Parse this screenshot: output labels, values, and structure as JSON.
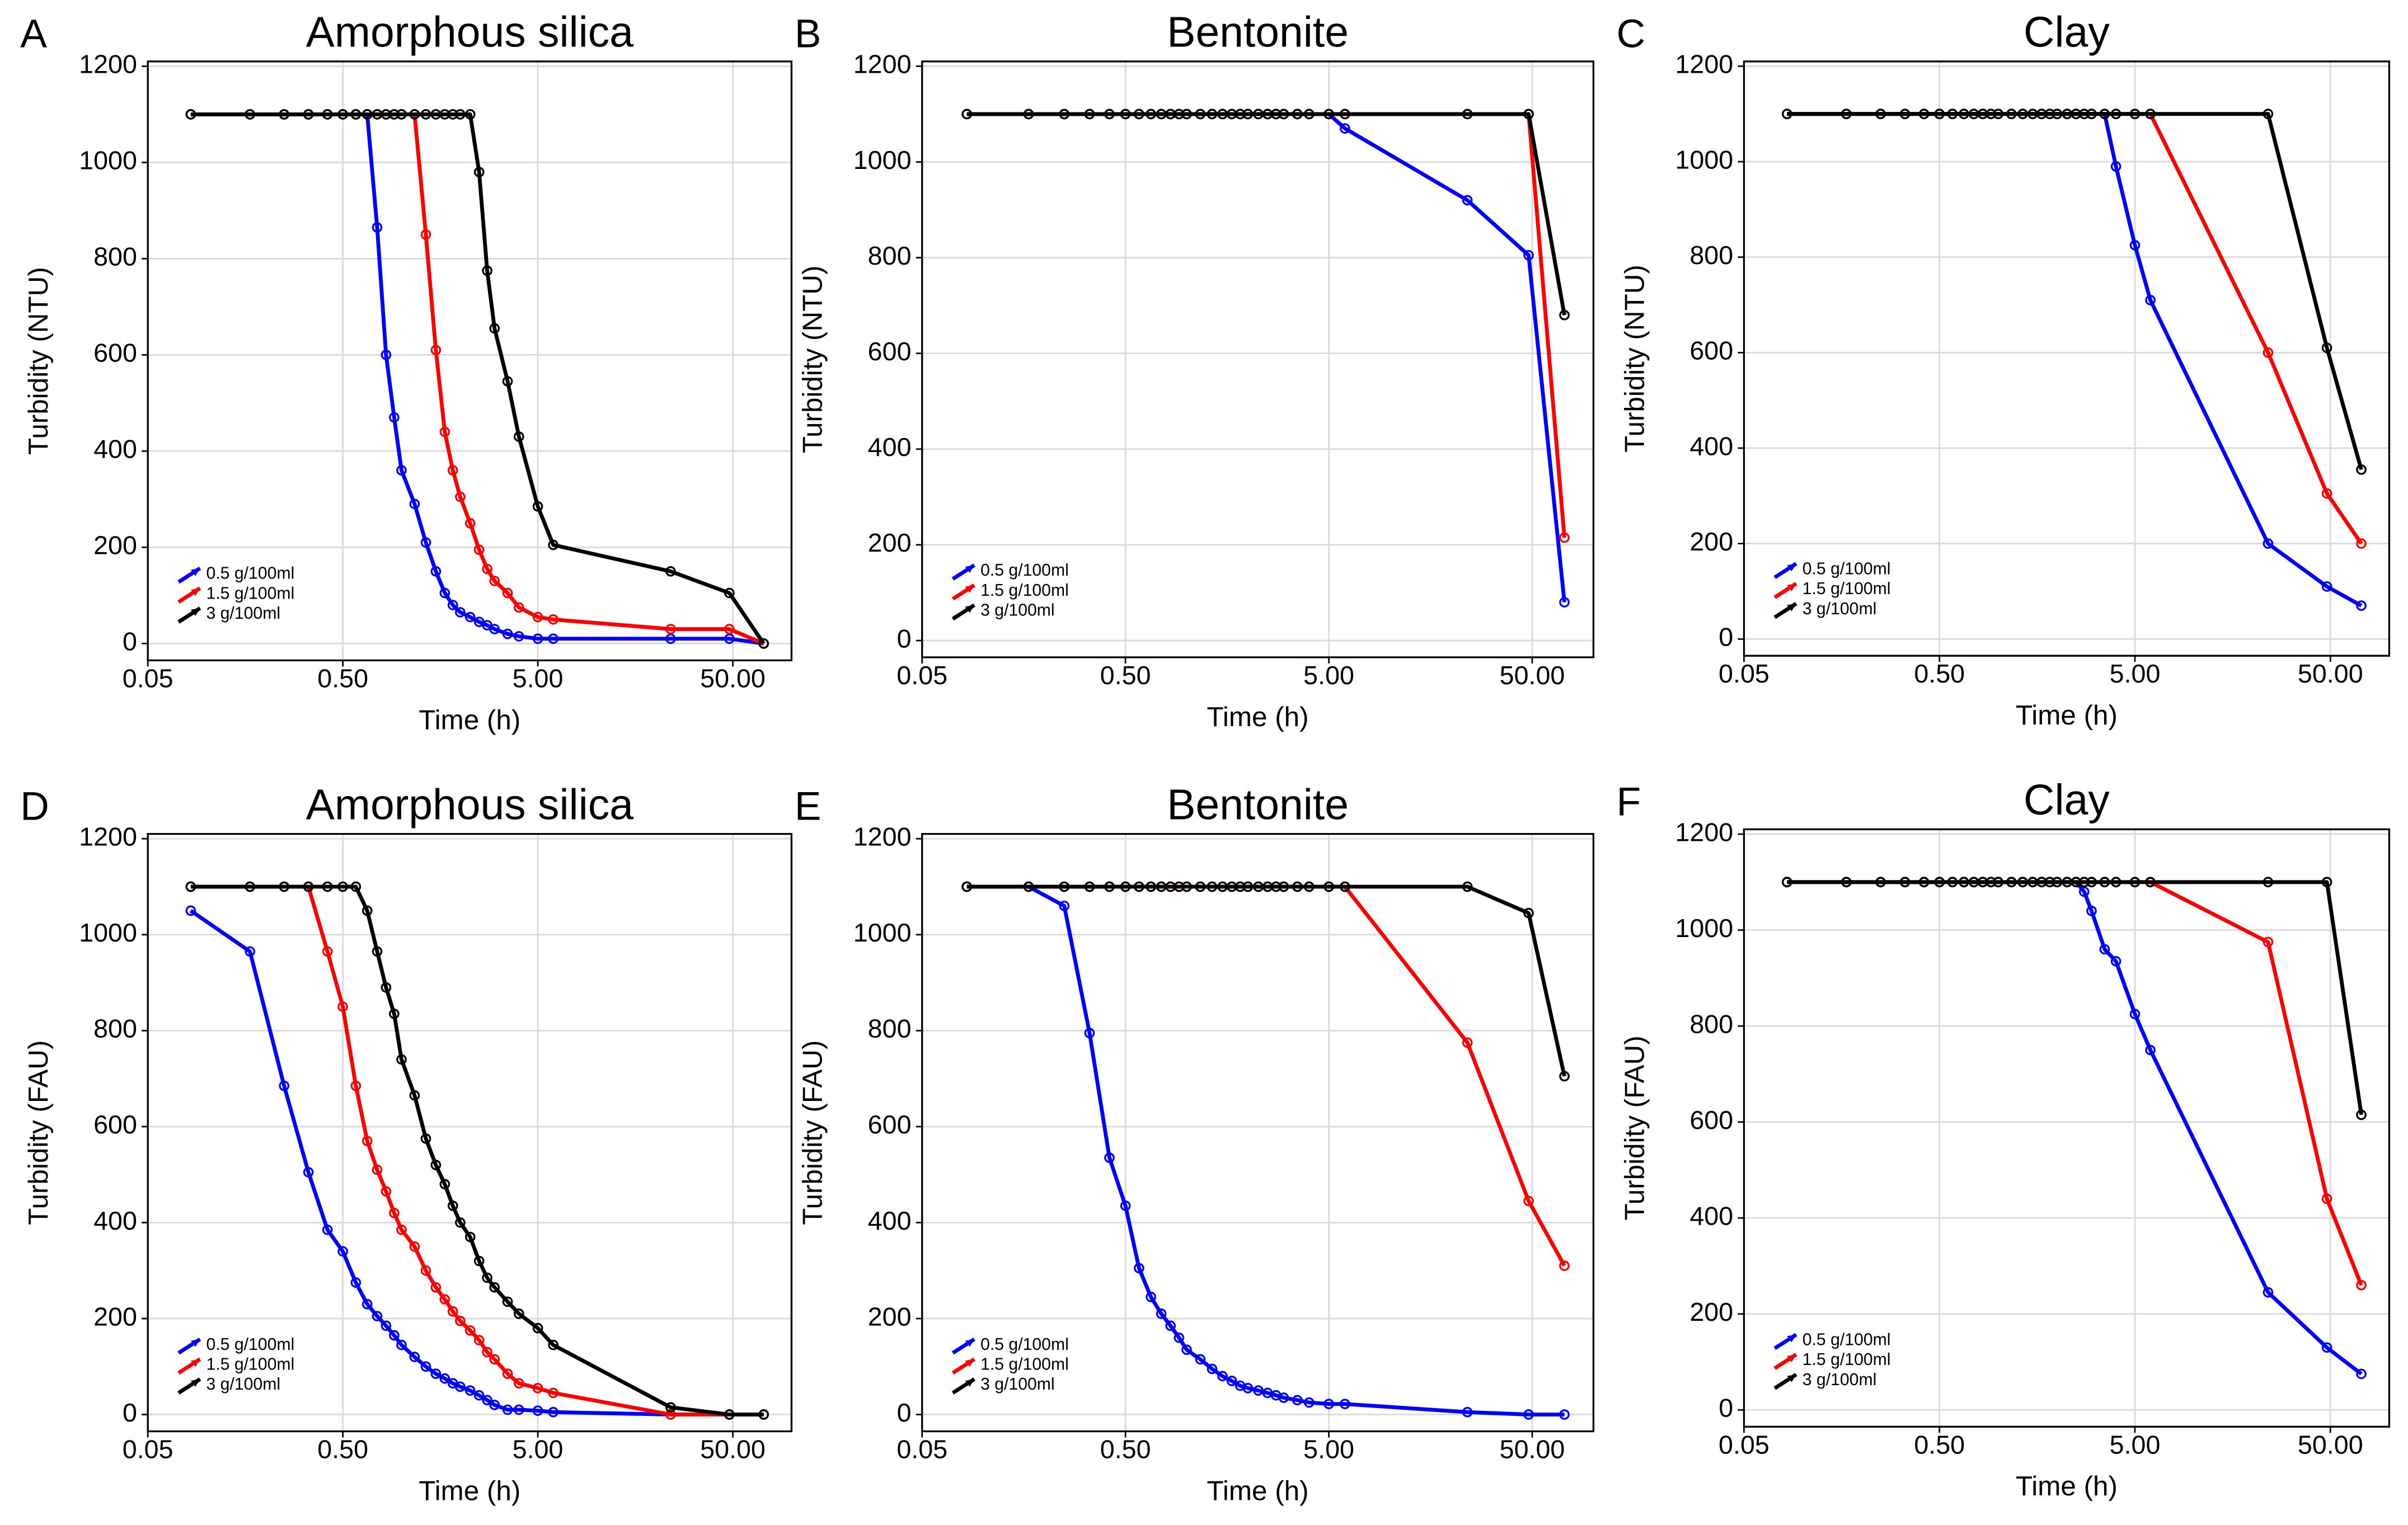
{
  "chart_data": [
    {
      "type": "line",
      "panel": "A",
      "title": "Amorphous silica",
      "x_label": "Time (h)",
      "y_label": "Turbidity (NTU)",
      "x": [
        0.083,
        0.167,
        0.25,
        0.333,
        0.417,
        0.5,
        0.583,
        0.667,
        0.75,
        0.833,
        0.917,
        1,
        1.167,
        1.333,
        1.5,
        1.667,
        1.833,
        2,
        2.25,
        2.5,
        2.75,
        3,
        3.5,
        4,
        5,
        6,
        24,
        48,
        72
      ],
      "series": [
        {
          "name": "0.5 g/100ml",
          "color": "#0000ff",
          "values": [
            1100,
            1100,
            1100,
            1100,
            1100,
            1100,
            1100,
            1100,
            865,
            600,
            470,
            360,
            290,
            210,
            150,
            105,
            80,
            65,
            55,
            45,
            38,
            30,
            20,
            15,
            10,
            10,
            10,
            10,
            0
          ]
        },
        {
          "name": "1.5 g/100ml",
          "color": "#ff0000",
          "values": [
            1100,
            1100,
            1100,
            1100,
            1100,
            1100,
            1100,
            1100,
            1100,
            1100,
            1100,
            1100,
            1100,
            850,
            610,
            440,
            360,
            305,
            250,
            195,
            155,
            130,
            105,
            75,
            55,
            50,
            30,
            30,
            0
          ]
        },
        {
          "name": "3 g/100ml",
          "color": "#000000",
          "values": [
            1100,
            1100,
            1100,
            1100,
            1100,
            1100,
            1100,
            1100,
            1100,
            1100,
            1100,
            1100,
            1100,
            1100,
            1100,
            1100,
            1100,
            1100,
            1100,
            980,
            775,
            655,
            545,
            430,
            285,
            205,
            150,
            105,
            0
          ]
        }
      ],
      "log_x": true,
      "xlim": [
        0.05,
        100
      ],
      "ylim": [
        -35,
        1210
      ],
      "xticks": [
        0.05,
        {
          "value": 0.5,
          "label": "0.50"
        },
        {
          "value": 5,
          "label": "5.00"
        },
        {
          "value": 50,
          "label": "50.00"
        }
      ],
      "yticks": [
        0,
        200,
        400,
        600,
        800,
        1000,
        1200
      ],
      "grid": true,
      "legend": "lower left"
    },
    {
      "type": "line",
      "panel": "B",
      "title": "Bentonite",
      "x_label": "Time (h)",
      "y_label": "Turbidity (NTU)",
      "x": [
        0.083,
        0.167,
        0.25,
        0.333,
        0.417,
        0.5,
        0.583,
        0.667,
        0.75,
        0.833,
        0.917,
        1,
        1.167,
        1.333,
        1.5,
        1.667,
        1.833,
        2,
        2.25,
        2.5,
        2.75,
        3,
        3.5,
        4,
        5,
        6,
        24,
        48,
        72
      ],
      "series": [
        {
          "name": "0.5 g/100ml",
          "color": "#0000ff",
          "values": [
            1100,
            1100,
            1100,
            1100,
            1100,
            1100,
            1100,
            1100,
            1100,
            1100,
            1100,
            1100,
            1100,
            1100,
            1100,
            1100,
            1100,
            1100,
            1100,
            1100,
            1100,
            1100,
            1100,
            1100,
            1100,
            1070,
            920,
            805,
            80
          ]
        },
        {
          "name": "1.5 g/100ml",
          "color": "#ff0000",
          "values": [
            1100,
            1100,
            1100,
            1100,
            1100,
            1100,
            1100,
            1100,
            1100,
            1100,
            1100,
            1100,
            1100,
            1100,
            1100,
            1100,
            1100,
            1100,
            1100,
            1100,
            1100,
            1100,
            1100,
            1100,
            1100,
            1100,
            1100,
            1100,
            215
          ]
        },
        {
          "name": "3 g/100ml",
          "color": "#000000",
          "values": [
            1100,
            1100,
            1100,
            1100,
            1100,
            1100,
            1100,
            1100,
            1100,
            1100,
            1100,
            1100,
            1100,
            1100,
            1100,
            1100,
            1100,
            1100,
            1100,
            1100,
            1100,
            1100,
            1100,
            1100,
            1100,
            1100,
            1100,
            1100,
            680
          ]
        }
      ],
      "log_x": true,
      "xlim": [
        0.05,
        100
      ],
      "ylim": [
        -35,
        1210
      ],
      "xticks": [
        0.05,
        {
          "value": 0.5,
          "label": "0.50"
        },
        {
          "value": 5,
          "label": "5.00"
        },
        {
          "value": 50,
          "label": "50.00"
        }
      ],
      "yticks": [
        0,
        200,
        400,
        600,
        800,
        1000,
        1200
      ],
      "grid": true,
      "legend": "lower left"
    },
    {
      "type": "line",
      "panel": "C",
      "title": "Clay",
      "x_label": "Time (h)",
      "y_label": "Turbidity (NTU)",
      "x": [
        0.083,
        0.167,
        0.25,
        0.333,
        0.417,
        0.5,
        0.583,
        0.667,
        0.75,
        0.833,
        0.917,
        1,
        1.167,
        1.333,
        1.5,
        1.667,
        1.833,
        2,
        2.25,
        2.5,
        2.75,
        3,
        3.5,
        4,
        5,
        6,
        24,
        48,
        72
      ],
      "series": [
        {
          "name": "0.5 g/100ml",
          "color": "#0000ff",
          "values": [
            1100,
            1100,
            1100,
            1100,
            1100,
            1100,
            1100,
            1100,
            1100,
            1100,
            1100,
            1100,
            1100,
            1100,
            1100,
            1100,
            1100,
            1100,
            1100,
            1100,
            1100,
            1100,
            1100,
            990,
            825,
            710,
            200,
            110,
            70
          ]
        },
        {
          "name": "1.5 g/100ml",
          "color": "#ff0000",
          "values": [
            1100,
            1100,
            1100,
            1100,
            1100,
            1100,
            1100,
            1100,
            1100,
            1100,
            1100,
            1100,
            1100,
            1100,
            1100,
            1100,
            1100,
            1100,
            1100,
            1100,
            1100,
            1100,
            1100,
            1100,
            1100,
            1100,
            600,
            305,
            200
          ]
        },
        {
          "name": "3 g/100ml",
          "color": "#000000",
          "values": [
            1100,
            1100,
            1100,
            1100,
            1100,
            1100,
            1100,
            1100,
            1100,
            1100,
            1100,
            1100,
            1100,
            1100,
            1100,
            1100,
            1100,
            1100,
            1100,
            1100,
            1100,
            1100,
            1100,
            1100,
            1100,
            1100,
            1100,
            610,
            355
          ]
        }
      ],
      "log_x": true,
      "xlim": [
        0.05,
        100
      ],
      "ylim": [
        -35,
        1210
      ],
      "xticks": [
        0.05,
        {
          "value": 0.5,
          "label": "0.50"
        },
        {
          "value": 5,
          "label": "5.00"
        },
        {
          "value": 50,
          "label": "50.00"
        }
      ],
      "yticks": [
        0,
        200,
        400,
        600,
        800,
        1000,
        1200
      ],
      "grid": true,
      "legend": "lower left"
    },
    {
      "type": "line",
      "panel": "D",
      "title": "Amorphous silica",
      "x_label": "Time (h)",
      "y_label": "Turbidity (FAU)",
      "x": [
        0.083,
        0.167,
        0.25,
        0.333,
        0.417,
        0.5,
        0.583,
        0.667,
        0.75,
        0.833,
        0.917,
        1,
        1.167,
        1.333,
        1.5,
        1.667,
        1.833,
        2,
        2.25,
        2.5,
        2.75,
        3,
        3.5,
        4,
        5,
        6,
        24,
        48,
        72
      ],
      "series": [
        {
          "name": "0.5 g/100ml",
          "color": "#0000ff",
          "values": [
            1050,
            965,
            685,
            505,
            385,
            340,
            275,
            230,
            205,
            185,
            165,
            145,
            120,
            100,
            85,
            75,
            65,
            58,
            50,
            40,
            30,
            20,
            10,
            10,
            8,
            5,
            0,
            0,
            0
          ]
        },
        {
          "name": "1.5 g/100ml",
          "color": "#ff0000",
          "values": [
            1100,
            1100,
            1100,
            1100,
            965,
            850,
            685,
            570,
            510,
            465,
            420,
            385,
            350,
            300,
            265,
            240,
            215,
            195,
            175,
            155,
            130,
            115,
            85,
            65,
            55,
            45,
            0,
            0,
            0
          ]
        },
        {
          "name": "3 g/100ml",
          "color": "#000000",
          "values": [
            1100,
            1100,
            1100,
            1100,
            1100,
            1100,
            1100,
            1050,
            965,
            890,
            835,
            740,
            665,
            575,
            520,
            480,
            435,
            400,
            370,
            320,
            285,
            265,
            235,
            210,
            180,
            145,
            15,
            0,
            0
          ]
        }
      ],
      "log_x": true,
      "xlim": [
        0.05,
        100
      ],
      "ylim": [
        -35,
        1210
      ],
      "xticks": [
        0.05,
        {
          "value": 0.5,
          "label": "0.50"
        },
        {
          "value": 5,
          "label": "5.00"
        },
        {
          "value": 50,
          "label": "50.00"
        }
      ],
      "yticks": [
        0,
        200,
        400,
        600,
        800,
        1000,
        1200
      ],
      "grid": true,
      "legend": "lower left"
    },
    {
      "type": "line",
      "panel": "E",
      "title": "Bentonite",
      "x_label": "Time (h)",
      "y_label": "Turbidity (FAU)",
      "x": [
        0.083,
        0.167,
        0.25,
        0.333,
        0.417,
        0.5,
        0.583,
        0.667,
        0.75,
        0.833,
        0.917,
        1,
        1.167,
        1.333,
        1.5,
        1.667,
        1.833,
        2,
        2.25,
        2.5,
        2.75,
        3,
        3.5,
        4,
        5,
        6,
        24,
        48,
        72
      ],
      "series": [
        {
          "name": "0.5 g/100ml",
          "color": "#0000ff",
          "values": [
            1100,
            1100,
            1060,
            795,
            535,
            435,
            305,
            245,
            210,
            185,
            160,
            135,
            115,
            95,
            80,
            70,
            60,
            55,
            50,
            45,
            40,
            35,
            30,
            25,
            22,
            22,
            5,
            0,
            0
          ]
        },
        {
          "name": "1.5 g/100ml",
          "color": "#ff0000",
          "values": [
            1100,
            1100,
            1100,
            1100,
            1100,
            1100,
            1100,
            1100,
            1100,
            1100,
            1100,
            1100,
            1100,
            1100,
            1100,
            1100,
            1100,
            1100,
            1100,
            1100,
            1100,
            1100,
            1100,
            1100,
            1100,
            1100,
            775,
            445,
            310
          ]
        },
        {
          "name": "3 g/100ml",
          "color": "#000000",
          "values": [
            1100,
            1100,
            1100,
            1100,
            1100,
            1100,
            1100,
            1100,
            1100,
            1100,
            1100,
            1100,
            1100,
            1100,
            1100,
            1100,
            1100,
            1100,
            1100,
            1100,
            1100,
            1100,
            1100,
            1100,
            1100,
            1100,
            1100,
            1045,
            705
          ]
        }
      ],
      "log_x": true,
      "xlim": [
        0.05,
        100
      ],
      "ylim": [
        -35,
        1210
      ],
      "xticks": [
        0.05,
        {
          "value": 0.5,
          "label": "0.50"
        },
        {
          "value": 5,
          "label": "5.00"
        },
        {
          "value": 50,
          "label": "50.00"
        }
      ],
      "yticks": [
        0,
        200,
        400,
        600,
        800,
        1000,
        1200
      ],
      "grid": true,
      "legend": "lower left"
    },
    {
      "type": "line",
      "panel": "F",
      "title": "Clay",
      "x_label": "Time (h)",
      "y_label": "Turbidity (FAU)",
      "x": [
        0.083,
        0.167,
        0.25,
        0.333,
        0.417,
        0.5,
        0.583,
        0.667,
        0.75,
        0.833,
        0.917,
        1,
        1.167,
        1.333,
        1.5,
        1.667,
        1.833,
        2,
        2.25,
        2.5,
        2.75,
        3,
        3.5,
        4,
        5,
        6,
        24,
        48,
        72
      ],
      "series": [
        {
          "name": "0.5 g/100ml",
          "color": "#0000ff",
          "values": [
            1100,
            1100,
            1100,
            1100,
            1100,
            1100,
            1100,
            1100,
            1100,
            1100,
            1100,
            1100,
            1100,
            1100,
            1100,
            1100,
            1100,
            1100,
            1100,
            1100,
            1080,
            1040,
            960,
            935,
            825,
            750,
            245,
            130,
            75
          ]
        },
        {
          "name": "1.5 g/100ml",
          "color": "#ff0000",
          "values": [
            1100,
            1100,
            1100,
            1100,
            1100,
            1100,
            1100,
            1100,
            1100,
            1100,
            1100,
            1100,
            1100,
            1100,
            1100,
            1100,
            1100,
            1100,
            1100,
            1100,
            1100,
            1100,
            1100,
            1100,
            1100,
            1100,
            975,
            440,
            260
          ]
        },
        {
          "name": "3 g/100ml",
          "color": "#000000",
          "values": [
            1100,
            1100,
            1100,
            1100,
            1100,
            1100,
            1100,
            1100,
            1100,
            1100,
            1100,
            1100,
            1100,
            1100,
            1100,
            1100,
            1100,
            1100,
            1100,
            1100,
            1100,
            1100,
            1100,
            1100,
            1100,
            1100,
            1100,
            1100,
            615
          ]
        }
      ],
      "log_x": true,
      "xlim": [
        0.05,
        100
      ],
      "ylim": [
        -35,
        1210
      ],
      "xticks": [
        0.05,
        {
          "value": 0.5,
          "label": "0.50"
        },
        {
          "value": 5,
          "label": "5.00"
        },
        {
          "value": 50,
          "label": "50.00"
        }
      ],
      "yticks": [
        0,
        200,
        400,
        600,
        800,
        1000,
        1200
      ],
      "grid": true,
      "legend": "lower left"
    }
  ]
}
